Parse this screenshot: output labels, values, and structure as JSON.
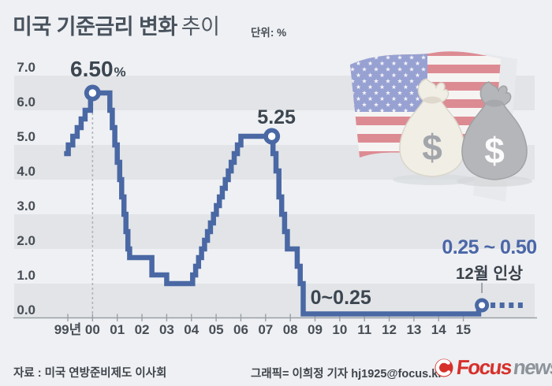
{
  "header": {
    "title_strong": "미국 기준금리 변화",
    "title_light": "추이",
    "unit": "단위: %"
  },
  "decor": {
    "bag_symbol": "$"
  },
  "footer": {
    "source": "자료 : 미국 연방준비제도 이사회",
    "credit": "그래픽= 이희정 기자 hj1925@focus.kr",
    "logo_focus": "Focus",
    "logo_news": "news"
  },
  "colors": {
    "background": "#eef0f3",
    "band": "#e2e4e7",
    "line": "#4a68a4",
    "annotation_dark": "#3c4650",
    "annotation_blue": "#4a66a8",
    "axis": "#9aa0a6",
    "guide": "#a6abb3",
    "logo_red": "#d6302b",
    "logo_gray": "#8d939b"
  },
  "chart_data": {
    "type": "line",
    "step": true,
    "title": "미국 기준금리 변화 추이",
    "unit": "%",
    "xlabel": "",
    "ylabel": "",
    "ylim": [
      0,
      7
    ],
    "grid": "alternating-bands",
    "y_ticks": [
      {
        "value": 7,
        "label": "7.0"
      },
      {
        "value": 6,
        "label": "6.0"
      },
      {
        "value": 5,
        "label": "5.0"
      },
      {
        "value": 4,
        "label": "4.0"
      },
      {
        "value": 3,
        "label": "3.0"
      },
      {
        "value": 2,
        "label": "2.0"
      },
      {
        "value": 1,
        "label": "1.0"
      },
      {
        "value": 0,
        "label": "0.0"
      }
    ],
    "x_ticks": [
      {
        "year": 1999,
        "label": "99년"
      },
      {
        "year": 2000,
        "label": "00"
      },
      {
        "year": 2001,
        "label": "01"
      },
      {
        "year": 2002,
        "label": "02"
      },
      {
        "year": 2003,
        "label": "03"
      },
      {
        "year": 2004,
        "label": "04"
      },
      {
        "year": 2005,
        "label": "05"
      },
      {
        "year": 2006,
        "label": "06"
      },
      {
        "year": 2007,
        "label": "07"
      },
      {
        "year": 2008,
        "label": "08"
      },
      {
        "year": 2009,
        "label": "09"
      },
      {
        "year": 2010,
        "label": "10"
      },
      {
        "year": 2011,
        "label": "11"
      },
      {
        "year": 2012,
        "label": "12"
      },
      {
        "year": 2013,
        "label": "13"
      },
      {
        "year": 2014,
        "label": "14"
      },
      {
        "year": 2015,
        "label": "15"
      }
    ],
    "series": [
      {
        "name": "미국 기준금리",
        "points": [
          [
            1998.85,
            4.75
          ],
          [
            1999.02,
            5.0
          ],
          [
            1999.2,
            5.25
          ],
          [
            1999.38,
            5.5
          ],
          [
            1999.54,
            5.75
          ],
          [
            1999.7,
            6.0
          ],
          [
            1999.92,
            6.5
          ],
          [
            2000.7,
            6.0
          ],
          [
            2000.8,
            5.5
          ],
          [
            2000.9,
            5.0
          ],
          [
            2001.0,
            4.5
          ],
          [
            2001.1,
            4.0
          ],
          [
            2001.18,
            3.5
          ],
          [
            2001.27,
            3.0
          ],
          [
            2001.35,
            2.5
          ],
          [
            2001.43,
            2.0
          ],
          [
            2001.5,
            1.75
          ],
          [
            2002.4,
            1.25
          ],
          [
            2003.0,
            1.0
          ],
          [
            2004.05,
            1.25
          ],
          [
            2004.17,
            1.5
          ],
          [
            2004.29,
            1.75
          ],
          [
            2004.41,
            2.0
          ],
          [
            2004.53,
            2.25
          ],
          [
            2004.65,
            2.5
          ],
          [
            2004.77,
            2.75
          ],
          [
            2004.89,
            3.0
          ],
          [
            2005.01,
            3.25
          ],
          [
            2005.13,
            3.5
          ],
          [
            2005.25,
            3.75
          ],
          [
            2005.37,
            4.0
          ],
          [
            2005.49,
            4.25
          ],
          [
            2005.61,
            4.5
          ],
          [
            2005.73,
            4.75
          ],
          [
            2005.86,
            5.0
          ],
          [
            2006.0,
            5.25
          ],
          [
            2007.3,
            4.75
          ],
          [
            2007.42,
            4.25
          ],
          [
            2007.54,
            3.5
          ],
          [
            2007.65,
            3.0
          ],
          [
            2007.77,
            2.5
          ],
          [
            2007.88,
            2.0
          ],
          [
            2008.28,
            1.5
          ],
          [
            2008.4,
            1.0
          ],
          [
            2008.52,
            0.125
          ],
          [
            2015.62,
            0.375
          ]
        ]
      }
    ],
    "markers": [
      {
        "x": 2000.0,
        "y": 6.5,
        "label": "6.50%"
      },
      {
        "x": 2007.25,
        "y": 5.25,
        "label": "5.25"
      },
      {
        "x": 2015.75,
        "y": 0.375,
        "label": "0.25 ~ 0.50"
      }
    ],
    "projection": {
      "x_from": 2016.1,
      "x_to": 2017.55,
      "y": 0.375
    },
    "guide_line": {
      "x": 2000.0,
      "y_from": 6.2,
      "y_to": 0
    },
    "annotations": [
      {
        "name": "peak-2000-label",
        "text": "6.50",
        "suffix": "%",
        "x": 2000.0,
        "y": 6.5
      },
      {
        "name": "peak-2007-label",
        "text": "5.25",
        "x": 2007.25,
        "y": 5.25
      },
      {
        "name": "zero-range-label",
        "text": "0~0.25",
        "x": 2008.75,
        "y": 0.125
      },
      {
        "name": "new-range-label",
        "text": "0.25 ~ 0.50",
        "x": 2016.05,
        "y": 1.9
      },
      {
        "name": "dec-hike-label",
        "text": "12월 인상",
        "x": 2016.05,
        "y": 1.15
      }
    ],
    "legend": []
  }
}
